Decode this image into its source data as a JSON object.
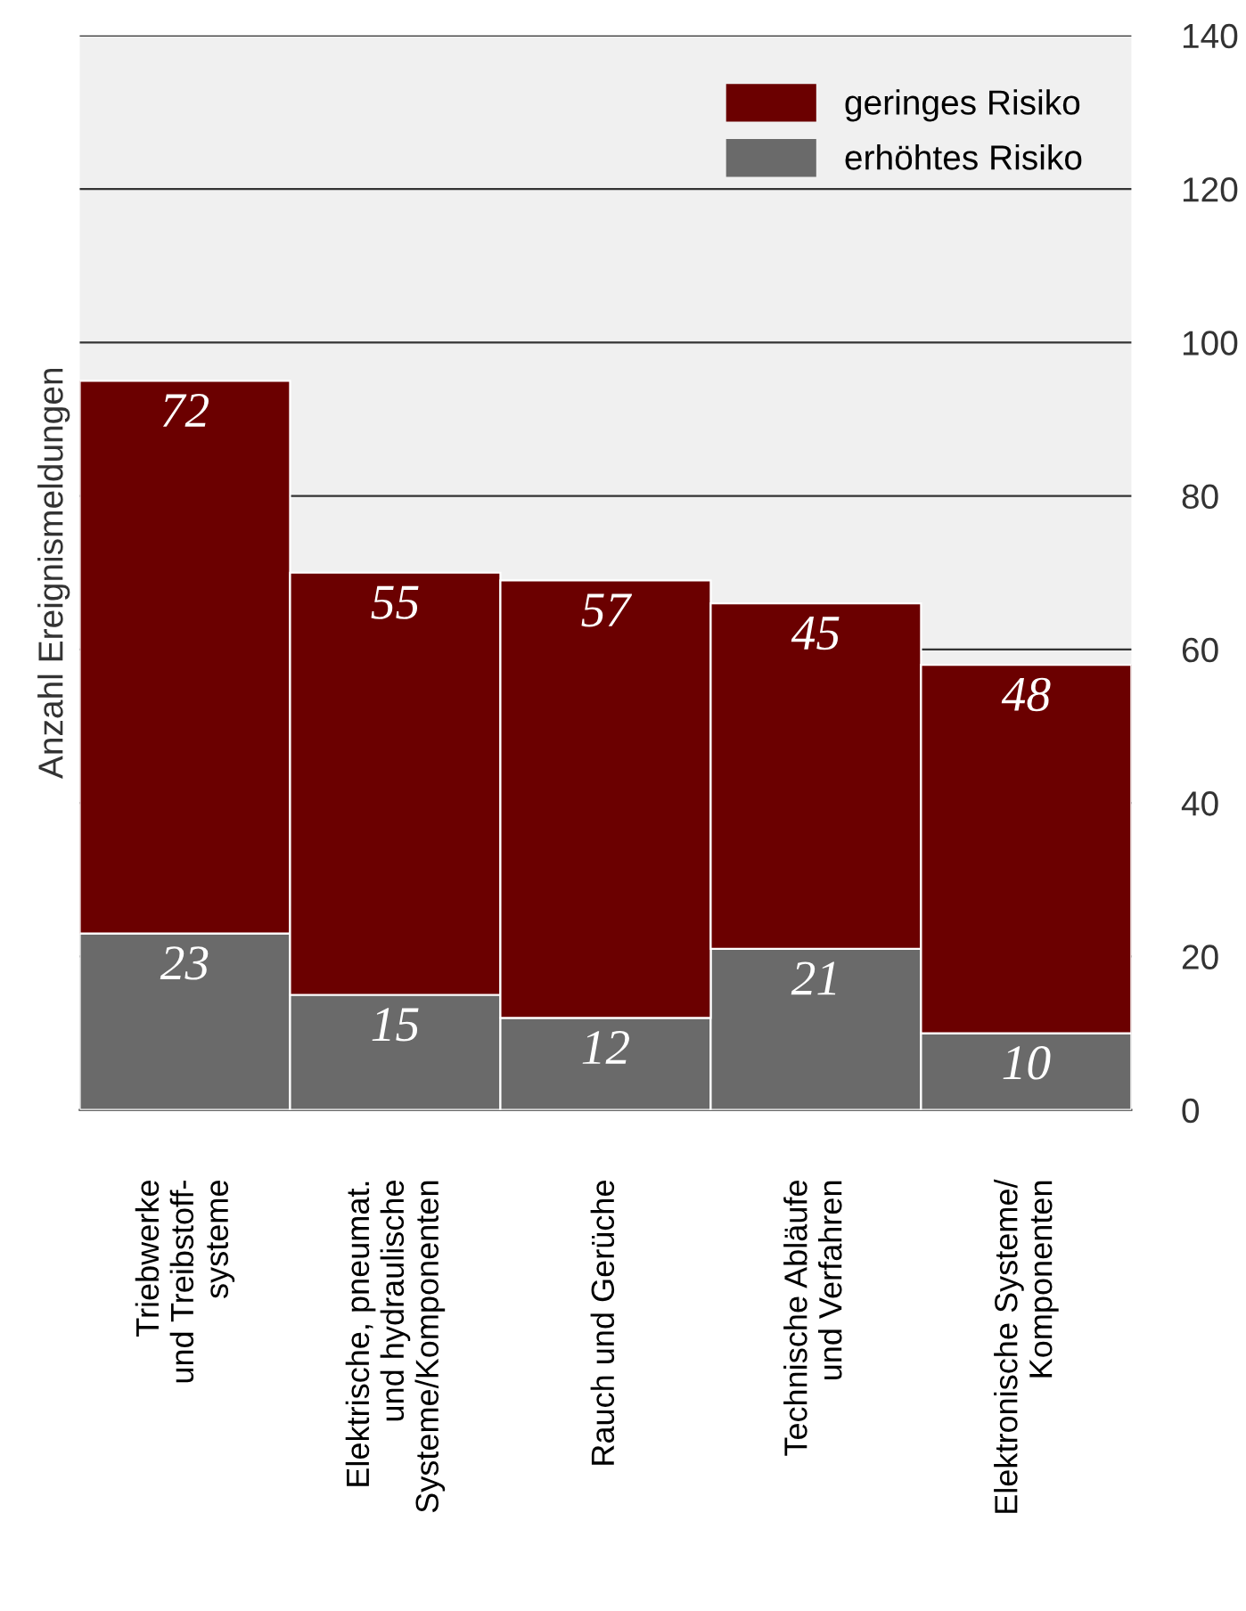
{
  "chart_data": {
    "type": "bar",
    "stacked": true,
    "ylabel": "Anzahl Ereignismeldungen",
    "categories": [
      "Triebwerke\nund Treibstoff-\nsysteme",
      "Elektrische, pneumat.\nund hydraulische\nSysteme/Komponenten",
      "Rauch und Gerüche",
      "Technische Abläufe\nund Verfahren",
      "Elektronische Systeme/\nKomponenten"
    ],
    "series": [
      {
        "name": "erhöhtes Risiko",
        "color": "#6a6a6a",
        "values": [
          23,
          15,
          12,
          21,
          10
        ]
      },
      {
        "name": "geringes Risiko",
        "color": "#6b0000",
        "values": [
          72,
          55,
          57,
          45,
          48
        ]
      }
    ],
    "ylim": [
      0,
      140
    ],
    "yticks": [
      0,
      20,
      40,
      60,
      80,
      100,
      120,
      140
    ],
    "grid": "y",
    "legend": "top right",
    "data_labels": true
  }
}
